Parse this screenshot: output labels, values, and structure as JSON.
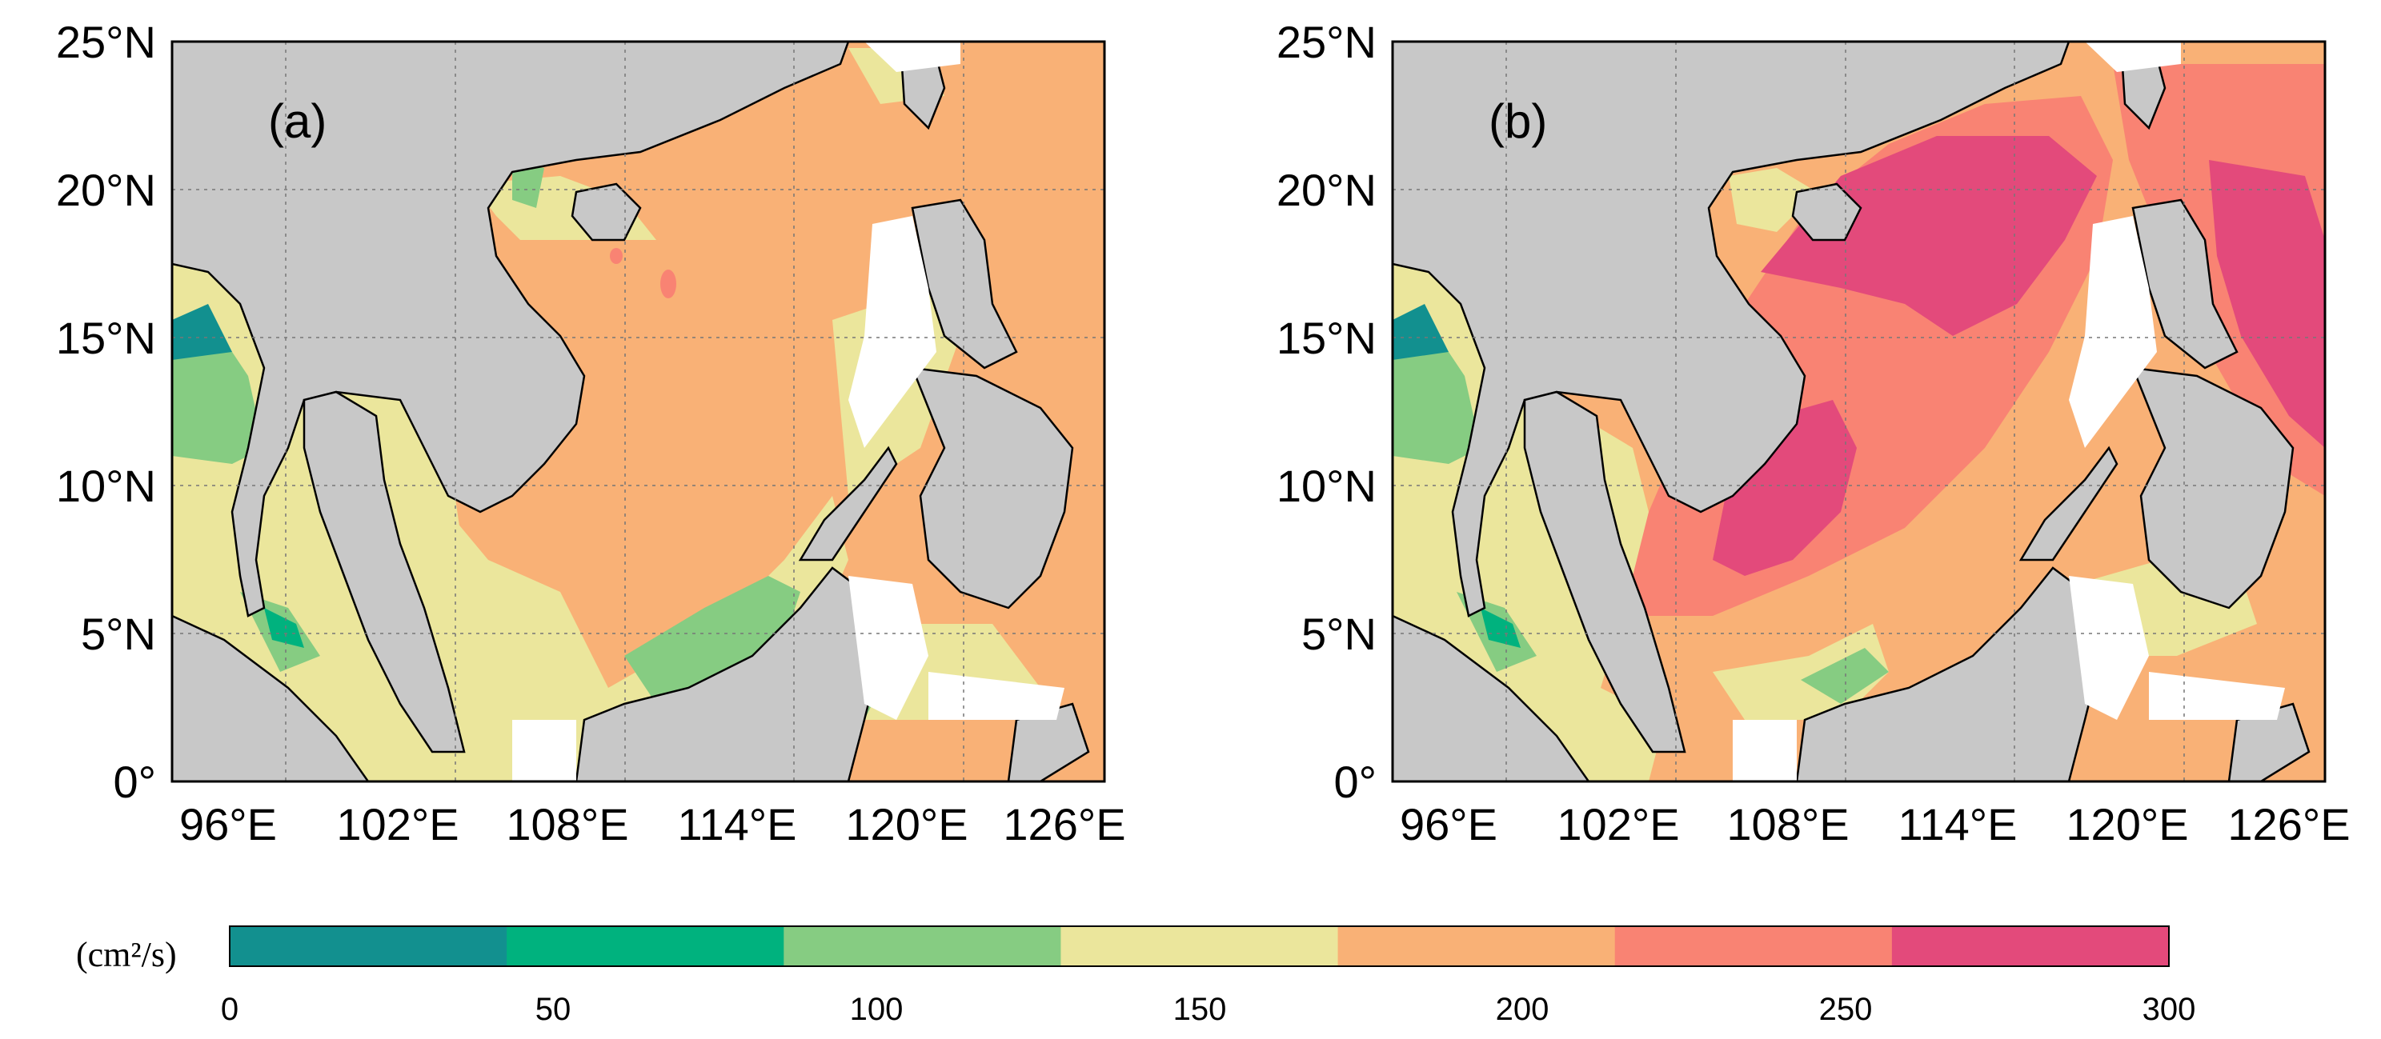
{
  "panels": [
    {
      "id": "a",
      "label": "(a)"
    },
    {
      "id": "b",
      "label": "(b)"
    }
  ],
  "axes": {
    "x_ticks": [
      "96°E",
      "102°E",
      "108°E",
      "114°E",
      "120°E",
      "126°E"
    ],
    "y_ticks": [
      "25°N",
      "20°N",
      "15°N",
      "10°N",
      "5°N",
      "0°"
    ],
    "lon_range": [
      94,
      127
    ],
    "lat_range": [
      0,
      25
    ],
    "grid": true
  },
  "colorbar": {
    "unit": "(cm²/s)",
    "ticks": [
      "0",
      "50",
      "100",
      "150",
      "200",
      "250",
      "300"
    ],
    "range": [
      0,
      300
    ],
    "colors": [
      "#12908f",
      "#00b27e",
      "#86cc82",
      "#ebe69c",
      "#f9b176",
      "#f98373",
      "#e34a7b"
    ]
  },
  "colors": {
    "land": "#c8c8c8",
    "no_data": "#ffffff",
    "coast": "#000000"
  }
}
